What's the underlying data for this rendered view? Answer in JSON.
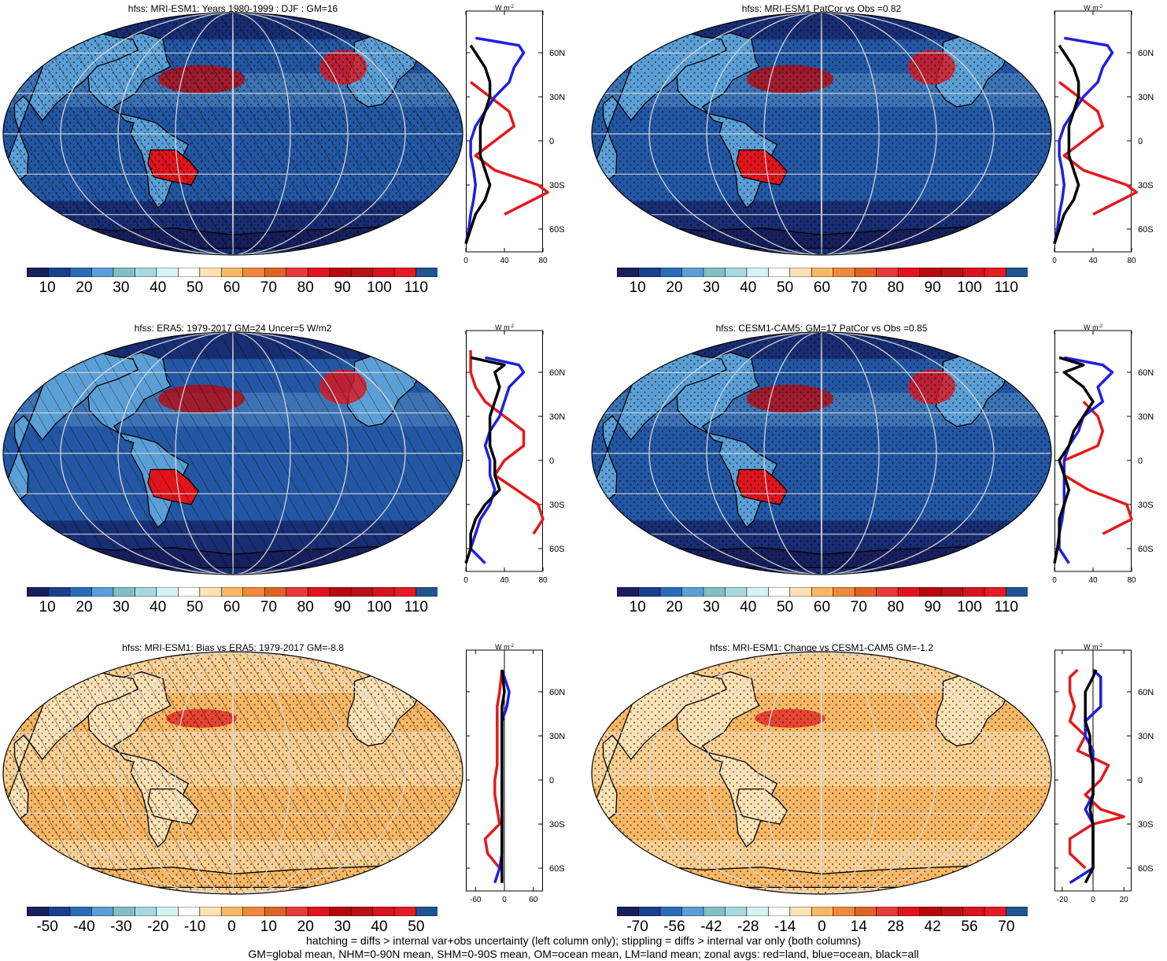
{
  "panels": [
    {
      "title": "hfss: MRI-ESM1: Years 1980-1999 : DJF : GM=16",
      "scale": "abs",
      "hatching": true,
      "stipple": true,
      "zonal_unit": "W m",
      "zonal_unit_exp": "-2",
      "zonal_lat_ticks": [
        "60N",
        "30N",
        "0",
        "30S",
        "60S"
      ],
      "zonal_x_ticks": [
        "0",
        "40",
        "80"
      ],
      "colorbar_labels": [
        "10",
        "20",
        "30",
        "40",
        "50",
        "60",
        "70",
        "80",
        "90",
        "100",
        "110"
      ]
    },
    {
      "title": "hfss: MRI-ESM1 PatCor vs Obs =0.82",
      "scale": "abs",
      "hatching": false,
      "stipple": true,
      "zonal_unit": "W m",
      "zonal_unit_exp": "-2",
      "zonal_lat_ticks": [
        "60N",
        "30N",
        "0",
        "30S",
        "60S"
      ],
      "zonal_x_ticks": [
        "0",
        "40",
        "80"
      ],
      "colorbar_labels": [
        "10",
        "20",
        "30",
        "40",
        "50",
        "60",
        "70",
        "80",
        "90",
        "100",
        "110"
      ]
    },
    {
      "title": "hfss: ERA5: 1979-2017 GM=24 Uncer=5 W/m2",
      "scale": "abs",
      "hatching": true,
      "stipple": false,
      "zonal_unit": "W m",
      "zonal_unit_exp": "-2",
      "zonal_lat_ticks": [
        "60N",
        "30N",
        "0",
        "30S",
        "60S"
      ],
      "zonal_x_ticks": [
        "0",
        "40",
        "80"
      ],
      "colorbar_labels": [
        "10",
        "20",
        "30",
        "40",
        "50",
        "60",
        "70",
        "80",
        "90",
        "100",
        "110"
      ]
    },
    {
      "title": "hfss: CESM1-CAM5: GM=17 PatCor vs Obs =0.85",
      "scale": "abs",
      "hatching": false,
      "stipple": true,
      "zonal_unit": "W m",
      "zonal_unit_exp": "-2",
      "zonal_lat_ticks": [
        "60N",
        "30N",
        "0",
        "30S",
        "60S"
      ],
      "zonal_x_ticks": [
        "0",
        "40",
        "80"
      ],
      "colorbar_labels": [
        "10",
        "20",
        "30",
        "40",
        "50",
        "60",
        "70",
        "80",
        "90",
        "100",
        "110"
      ]
    },
    {
      "title": "hfss: MRI-ESM1: Bias vs ERA5: 1979-2017 GM=-8.8",
      "scale": "diff",
      "hatching": true,
      "stipple": true,
      "zonal_unit": "W m",
      "zonal_unit_exp": "-2",
      "zonal_lat_ticks": [
        "60N",
        "30N",
        "0",
        "30S",
        "60S"
      ],
      "zonal_x_ticks": [
        "-60",
        "0",
        "60"
      ],
      "colorbar_labels": [
        "-50",
        "-40",
        "-30",
        "-20",
        "-10",
        "0",
        "10",
        "20",
        "30",
        "40",
        "50"
      ]
    },
    {
      "title": "hfss: MRI-ESM1: Change vs CESM1-CAM5 GM=-1.2",
      "scale": "diff",
      "hatching": false,
      "stipple": true,
      "zonal_unit": "W m",
      "zonal_unit_exp": "-2",
      "zonal_lat_ticks": [
        "60N",
        "30N",
        "0",
        "30S",
        "60S"
      ],
      "zonal_x_ticks": [
        "-20",
        "0",
        "20"
      ],
      "colorbar_labels": [
        "-70",
        "-56",
        "-42",
        "-28",
        "-14",
        "0",
        "14",
        "28",
        "42",
        "56",
        "70"
      ]
    }
  ],
  "colors": {
    "abs_scale": [
      "#171f5c",
      "#1a3f8c",
      "#2b6cb8",
      "#5b9fd6",
      "#80c0c0",
      "#a8d8e0",
      "#d6f3f3",
      "#ffffff",
      "#fde2b5",
      "#f8b866",
      "#ee8a3c",
      "#dc6428",
      "#e83a3a",
      "#e0141c",
      "#b8080e",
      "#b41218",
      "#d61420",
      "#e41c24",
      "#1e5590"
    ],
    "diff_scale": [
      "#171f5c",
      "#1a3f8c",
      "#2b6cb8",
      "#5b9fd6",
      "#80c0c0",
      "#a8d8e0",
      "#d6f3f3",
      "#ffffff",
      "#fde2b5",
      "#f8b866",
      "#ee8a3c",
      "#dc6428",
      "#e83a3a",
      "#e0141c",
      "#b8080e",
      "#b41218",
      "#d61420",
      "#e41c24",
      "#1e5590"
    ],
    "land_line": "#e31a1c",
    "ocean_line": "#1f1fe0",
    "all_line": "#000000"
  },
  "chart_data": [
    {
      "type": "heatmap",
      "title": "hfss: MRI-ESM1: Years 1980-1999 : DJF : GM=16",
      "zonal_series": [
        {
          "name": "red=land",
          "lat": [
            70,
            60,
            50,
            40,
            30,
            20,
            10,
            0,
            -10,
            -20,
            -30,
            -35,
            -40,
            -50
          ],
          "values": [
            null,
            null,
            null,
            5,
            25,
            45,
            50,
            30,
            10,
            30,
            75,
            85,
            70,
            40
          ]
        },
        {
          "name": "blue=ocean",
          "lat": [
            70,
            65,
            60,
            50,
            40,
            30,
            20,
            10,
            0,
            -10,
            -20,
            -30,
            -40,
            -50,
            -60,
            -70
          ],
          "values": [
            10,
            55,
            60,
            50,
            45,
            30,
            20,
            10,
            5,
            5,
            8,
            10,
            8,
            5,
            3,
            0
          ]
        },
        {
          "name": "black=all",
          "lat": [
            65,
            60,
            50,
            40,
            30,
            20,
            10,
            0,
            -10,
            -20,
            -30,
            -40,
            -50,
            -60,
            -70
          ],
          "values": [
            5,
            10,
            20,
            25,
            25,
            20,
            15,
            15,
            15,
            20,
            25,
            20,
            10,
            5,
            0
          ]
        }
      ],
      "xlim": [
        0,
        80
      ]
    },
    {
      "type": "heatmap",
      "title": "hfss: MRI-ESM1 PatCor vs Obs =0.82",
      "zonal_series": [
        {
          "name": "red=land",
          "lat": [
            40,
            30,
            20,
            10,
            0,
            -10,
            -20,
            -30,
            -35,
            -40,
            -50
          ],
          "values": [
            5,
            25,
            45,
            50,
            30,
            10,
            30,
            75,
            85,
            70,
            40
          ]
        },
        {
          "name": "blue=ocean",
          "lat": [
            70,
            65,
            60,
            50,
            40,
            30,
            20,
            10,
            0,
            -10,
            -20,
            -30,
            -40,
            -50,
            -60,
            -70
          ],
          "values": [
            10,
            55,
            60,
            50,
            45,
            30,
            20,
            10,
            5,
            5,
            8,
            10,
            8,
            5,
            3,
            0
          ]
        },
        {
          "name": "black=all",
          "lat": [
            65,
            60,
            50,
            40,
            30,
            20,
            10,
            0,
            -10,
            -20,
            -30,
            -40,
            -50,
            -60,
            -70
          ],
          "values": [
            5,
            10,
            20,
            25,
            25,
            20,
            15,
            15,
            15,
            20,
            25,
            20,
            10,
            5,
            0
          ]
        }
      ],
      "xlim": [
        0,
        80
      ]
    },
    {
      "type": "heatmap",
      "title": "hfss: ERA5: 1979-2017 GM=24 Uncer=5 W/m2",
      "zonal_series": [
        {
          "name": "red=land",
          "lat": [
            75,
            60,
            50,
            40,
            30,
            20,
            10,
            0,
            -10,
            -30,
            -40,
            -50
          ],
          "values": [
            5,
            5,
            10,
            20,
            40,
            60,
            60,
            40,
            30,
            75,
            80,
            70
          ]
        },
        {
          "name": "blue=ocean",
          "lat": [
            70,
            65,
            60,
            50,
            40,
            30,
            20,
            10,
            0,
            -10,
            -20,
            -30,
            -40,
            -50,
            -60,
            -70
          ],
          "values": [
            20,
            55,
            60,
            45,
            40,
            35,
            25,
            20,
            25,
            25,
            30,
            25,
            15,
            10,
            5,
            20
          ]
        },
        {
          "name": "black=all",
          "lat": [
            70,
            65,
            60,
            50,
            40,
            30,
            20,
            10,
            0,
            -10,
            -20,
            -30,
            -40,
            -50,
            -60,
            -70
          ],
          "values": [
            5,
            40,
            30,
            35,
            30,
            25,
            25,
            25,
            30,
            30,
            35,
            20,
            10,
            5,
            5,
            0
          ]
        }
      ],
      "xlim": [
        0,
        80
      ]
    },
    {
      "type": "heatmap",
      "title": "hfss: CESM1-CAM5: GM=17 PatCor vs Obs =0.85",
      "zonal_series": [
        {
          "name": "red=land",
          "lat": [
            40,
            30,
            20,
            10,
            0,
            -10,
            -20,
            -30,
            -40,
            -50
          ],
          "values": [
            30,
            45,
            50,
            45,
            10,
            10,
            35,
            75,
            80,
            50
          ]
        },
        {
          "name": "blue=ocean",
          "lat": [
            70,
            65,
            60,
            50,
            40,
            30,
            20,
            10,
            0,
            -10,
            -20,
            -30,
            -40,
            -50,
            -60,
            -70
          ],
          "values": [
            10,
            50,
            60,
            45,
            50,
            30,
            25,
            15,
            10,
            10,
            10,
            10,
            8,
            5,
            5,
            15
          ]
        },
        {
          "name": "black=all",
          "lat": [
            70,
            65,
            60,
            50,
            40,
            30,
            20,
            10,
            0,
            -10,
            -20,
            -30,
            -40,
            -50,
            -60,
            -70
          ],
          "values": [
            5,
            30,
            10,
            30,
            40,
            30,
            20,
            15,
            5,
            10,
            15,
            10,
            5,
            5,
            3,
            0
          ]
        }
      ],
      "xlim": [
        0,
        80
      ]
    },
    {
      "type": "heatmap",
      "title": "hfss: MRI-ESM1: Bias vs ERA5: 1979-2017 GM=-8.8",
      "zonal_series": [
        {
          "name": "red=land",
          "lat": [
            75,
            60,
            50,
            40,
            30,
            20,
            10,
            0,
            -10,
            -20,
            -30,
            -40,
            -50,
            -60
          ],
          "values": [
            -5,
            -10,
            -15,
            -15,
            -15,
            -15,
            -15,
            -20,
            -20,
            -15,
            -10,
            -40,
            -35,
            -10
          ]
        },
        {
          "name": "blue=ocean",
          "lat": [
            75,
            60,
            50,
            40,
            30,
            20,
            10,
            0,
            -10,
            -20,
            -30,
            -40,
            -50,
            -60,
            -70
          ],
          "values": [
            -5,
            10,
            5,
            -5,
            -5,
            -5,
            -5,
            -5,
            -5,
            -5,
            -5,
            -5,
            -5,
            -10,
            -20
          ]
        },
        {
          "name": "black=all",
          "lat": [
            75,
            60,
            50,
            40,
            30,
            20,
            10,
            0,
            -10,
            -20,
            -30,
            -40,
            -50,
            -60,
            -70
          ],
          "values": [
            -5,
            0,
            -5,
            -5,
            -5,
            -5,
            -5,
            -5,
            -5,
            -5,
            -5,
            -5,
            -5,
            -5,
            -5
          ]
        }
      ],
      "xlim": [
        -80,
        80
      ]
    },
    {
      "type": "heatmap",
      "title": "hfss: MRI-ESM1: Change vs CESM1-CAM5 GM=-1.2",
      "zonal_series": [
        {
          "name": "red=land",
          "lat": [
            75,
            70,
            60,
            50,
            40,
            30,
            20,
            10,
            0,
            -10,
            -20,
            -25,
            -30,
            -40,
            -50,
            -60
          ],
          "values": [
            -10,
            -15,
            -15,
            -12,
            -15,
            -5,
            -10,
            10,
            5,
            -5,
            5,
            20,
            0,
            -15,
            -15,
            -5
          ]
        },
        {
          "name": "blue=ocean",
          "lat": [
            75,
            70,
            60,
            50,
            40,
            30,
            20,
            10,
            0,
            -10,
            -20,
            -30,
            -40,
            -50,
            -60,
            -70
          ],
          "values": [
            0,
            5,
            5,
            5,
            -5,
            -5,
            0,
            0,
            0,
            0,
            -5,
            0,
            0,
            0,
            0,
            -15
          ]
        },
        {
          "name": "black=all",
          "lat": [
            75,
            70,
            60,
            50,
            40,
            30,
            20,
            10,
            0,
            -10,
            -20,
            -30,
            -40,
            -50,
            -60,
            -70
          ],
          "values": [
            2,
            0,
            -5,
            -5,
            -5,
            -2,
            -2,
            0,
            0,
            0,
            -2,
            0,
            0,
            0,
            0,
            -5
          ]
        }
      ],
      "xlim": [
        -25,
        25
      ]
    }
  ],
  "footer": {
    "line1": "hatching = diffs > internal var+obs uncertainty (left column only); stippling = diffs > internal var only (both columns)",
    "line2": "GM=global mean, NHM=0-90N mean, SHM=0-90S mean, OM=ocean mean, LM=land mean; zonal avgs: red=land, blue=ocean, black=all"
  }
}
